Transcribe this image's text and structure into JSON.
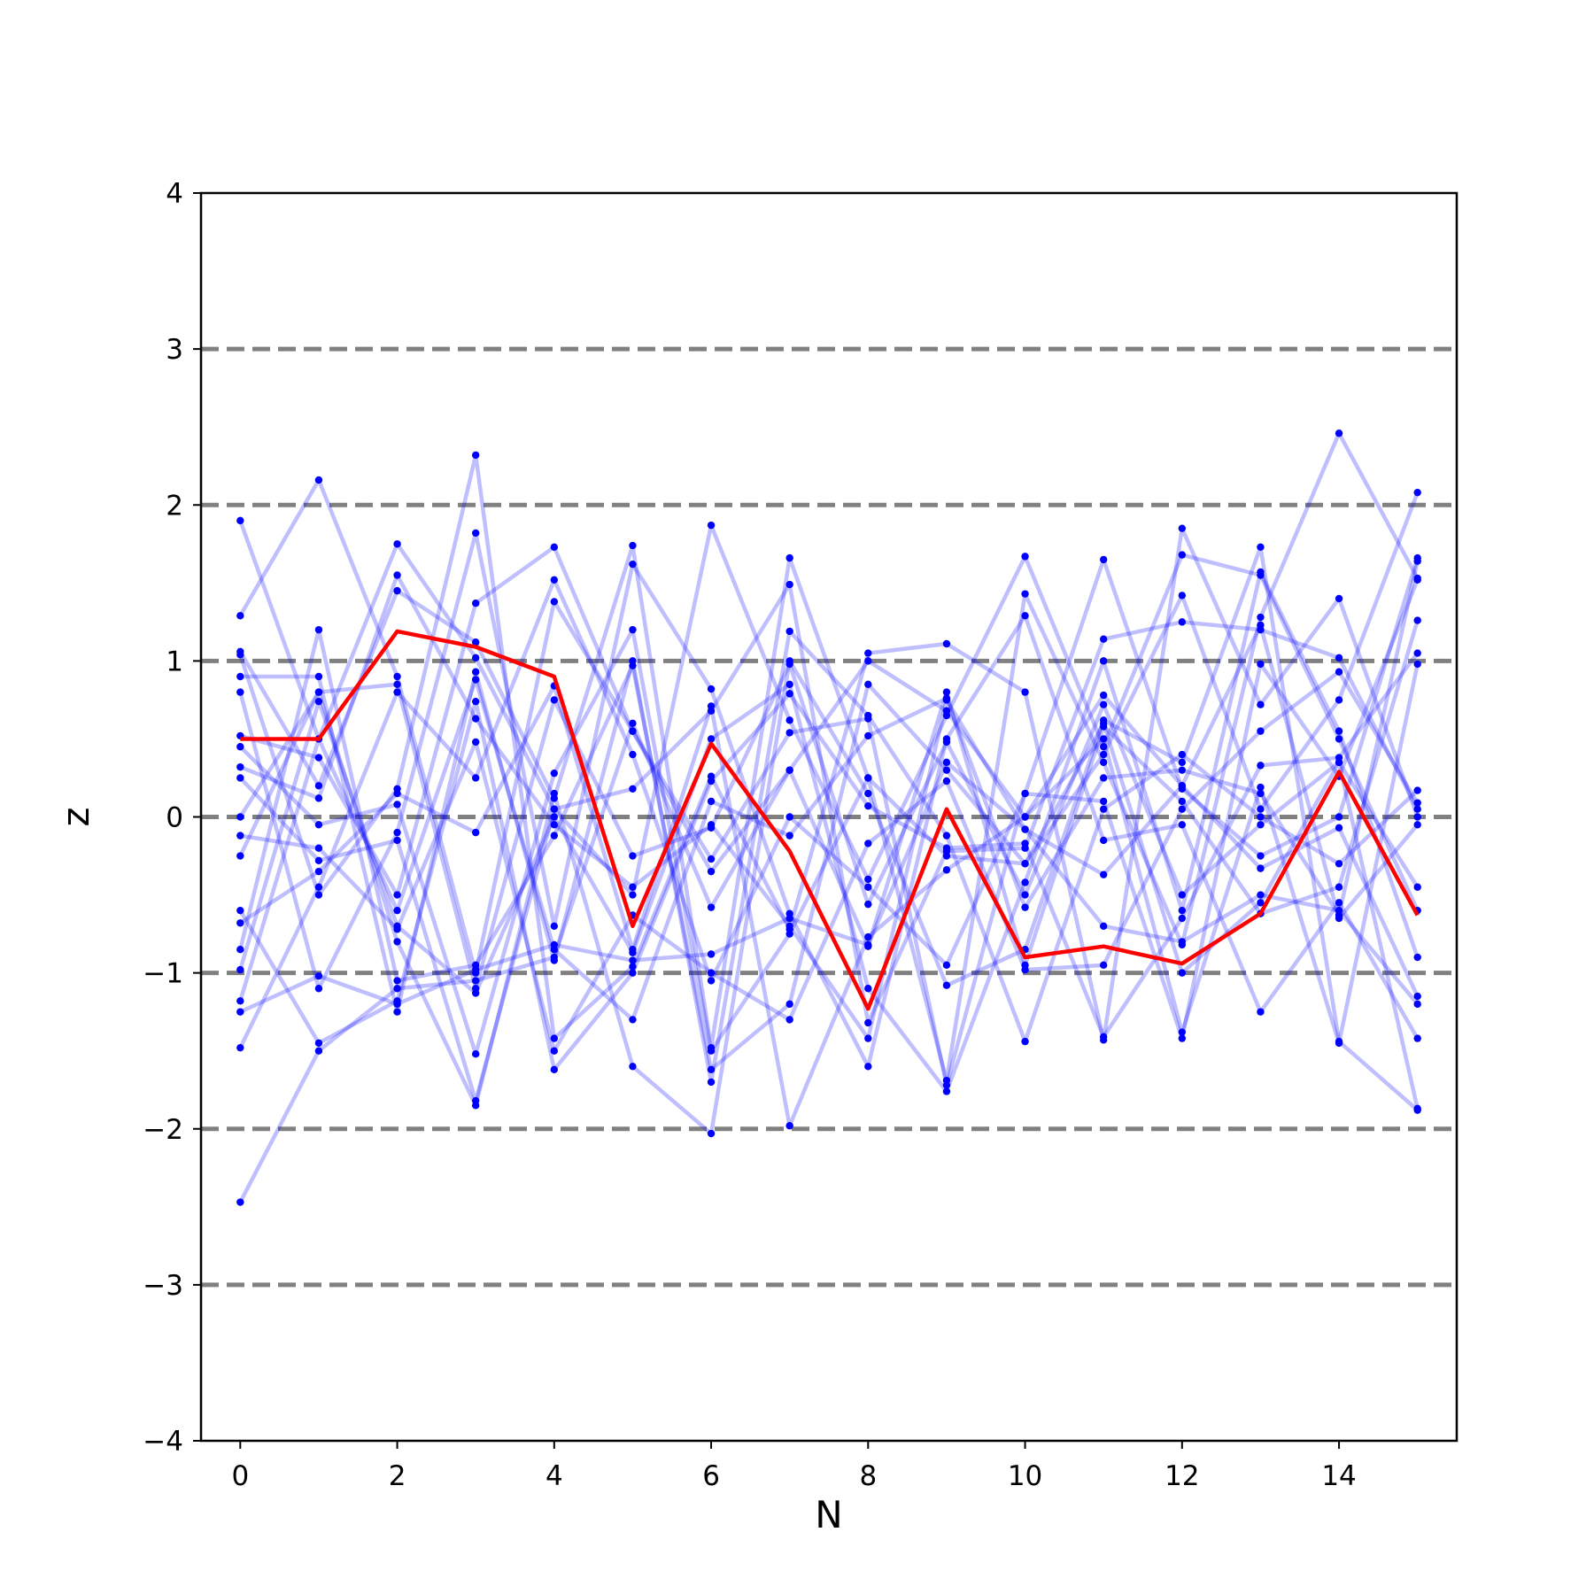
{
  "chart_data": {
    "type": "line",
    "xlabel": "N",
    "ylabel": "z",
    "xlim": [
      -0.5,
      15.5
    ],
    "ylim": [
      -4,
      4
    ],
    "xticks": [
      0,
      2,
      4,
      6,
      8,
      10,
      12,
      14
    ],
    "yticks": [
      -4,
      -3,
      -2,
      -1,
      0,
      1,
      2,
      3,
      4
    ],
    "ytick_labels": [
      "−4",
      "−3",
      "−2",
      "−1",
      "0",
      "1",
      "2",
      "3",
      "4"
    ],
    "reference_lines": [
      -3,
      -2,
      -1,
      0,
      1,
      2,
      3
    ],
    "grid": false,
    "colors": {
      "trajectories": "#0000ff",
      "highlight": "#ff0000",
      "reference": "#808080",
      "axes": "#000000"
    },
    "x": [
      0,
      1,
      2,
      3,
      4,
      5,
      6,
      7,
      8,
      9,
      10,
      11,
      12,
      13,
      14,
      15
    ],
    "highlight_series": {
      "values": [
        0.5,
        0.5,
        1.19,
        1.09,
        0.9,
        -0.7,
        0.47,
        -0.22,
        -1.23,
        0.05,
        -0.9,
        -0.83,
        -0.94,
        -0.62,
        0.29,
        -0.63
      ]
    },
    "series": [
      {
        "values": [
          1.9,
          0.5,
          1.75,
          1.02,
          0.05,
          -0.5,
          1.87,
          0.62,
          -0.4,
          0.65,
          1.67,
          0.45,
          1.68,
          1.55,
          0.5,
          -0.6
        ]
      },
      {
        "values": [
          1.29,
          2.16,
          0.9,
          -1.0,
          1.38,
          0.55,
          -0.35,
          0.3,
          -0.83,
          0.8,
          -0.95,
          0.58,
          0.1,
          -0.62,
          -0.45,
          1.26
        ]
      },
      {
        "values": [
          1.06,
          0.2,
          1.45,
          1.12,
          0.12,
          1.74,
          -1.48,
          1.66,
          0.25,
          -1.69,
          1.43,
          0.35,
          -0.82,
          1.28,
          2.46,
          1.53
        ]
      },
      {
        "values": [
          1.04,
          -0.5,
          0.18,
          2.32,
          -1.42,
          -0.96,
          0.26,
          -0.72,
          1.05,
          1.11,
          0.8,
          -1.43,
          1.85,
          0.72,
          1.4,
          0.0
        ]
      },
      {
        "values": [
          0.9,
          0.9,
          -1.25,
          0.93,
          -0.92,
          1.0,
          -1.7,
          1.19,
          0.65,
          -0.12,
          -1.44,
          0.05,
          0.4,
          0.0,
          -0.3,
          0.17
        ]
      },
      {
        "values": [
          0.8,
          -1.1,
          -0.1,
          1.82,
          -0.7,
          1.62,
          0.82,
          -0.62,
          -1.6,
          0.5,
          1.29,
          -0.15,
          -0.05,
          -1.25,
          -0.55,
          -1.42
        ]
      },
      {
        "values": [
          0.52,
          0.38,
          -0.5,
          1.37,
          1.73,
          0.55,
          -0.27,
          0.54,
          0.63,
          -1.72,
          0.15,
          1.65,
          0.18,
          -0.25,
          0.0,
          1.66
        ]
      },
      {
        "values": [
          0.45,
          -0.05,
          0.08,
          -1.52,
          0.28,
          1.2,
          -1.5,
          -0.75,
          0.25,
          -0.25,
          -0.3,
          0.4,
          1.42,
          0.05,
          0.75,
          2.08
        ]
      },
      {
        "values": [
          0.32,
          0.12,
          1.55,
          0.63,
          -0.05,
          -0.45,
          -0.05,
          -0.7,
          -1.42,
          0.75,
          -0.08,
          -0.7,
          -0.8,
          -0.5,
          -0.6,
          -1.2
        ]
      },
      {
        "values": [
          0.25,
          -0.28,
          -0.15,
          -1.82,
          0.05,
          0.18,
          0.68,
          1.49,
          -1.32,
          -0.22,
          -0.2,
          1.14,
          1.25,
          1.2,
          1.02,
          0.05
        ]
      },
      {
        "values": [
          0.0,
          0.8,
          0.85,
          -1.1,
          0.75,
          -0.25,
          -0.07,
          0.98,
          -0.56,
          0.48,
          -0.5,
          0.72,
          -0.5,
          -0.05,
          0.35,
          -0.45
        ]
      },
      {
        "values": [
          -0.12,
          -0.2,
          -0.72,
          0.48,
          -1.5,
          -0.63,
          -1.0,
          -1.3,
          -0.17,
          0.23,
          -0.98,
          -0.95,
          0.05,
          0.55,
          0.93,
          0.09
        ]
      },
      {
        "values": [
          -0.25,
          0.8,
          -0.8,
          -1.85,
          0.15,
          -1.6,
          -2.03,
          1.0,
          0.15,
          -1.08,
          -0.85,
          0.62,
          0.35,
          1.73,
          -1.44,
          -1.88
        ]
      },
      {
        "values": [
          -0.6,
          -1.45,
          -1.18,
          0.74,
          -1.62,
          -1.0,
          0.23,
          0.79,
          0.07,
          -0.2,
          -0.17,
          -1.41,
          -0.65,
          0.33,
          0.38,
          1.05
        ]
      },
      {
        "values": [
          -0.68,
          -0.35,
          0.15,
          -0.1,
          0.84,
          -0.85,
          0.71,
          -1.98,
          -0.77,
          -0.34,
          0.0,
          0.5,
          -1.38,
          0.19,
          -1.45,
          0.98
        ]
      },
      {
        "values": [
          -0.85,
          1.2,
          -1.05,
          -0.95,
          -0.12,
          0.97,
          -1.62,
          -1.2,
          0.85,
          0.3,
          -0.3,
          0.6,
          -1.0,
          -0.55,
          0.35,
          -1.87
        ]
      },
      {
        "values": [
          -0.98,
          0.74,
          -0.7,
          -1.13,
          0.0,
          -0.87,
          0.5,
          0.85,
          -1.1,
          -1.76,
          -0.42,
          1.0,
          -0.6,
          1.57,
          0.55,
          -0.9
        ]
      },
      {
        "values": [
          -1.18,
          0.5,
          -0.6,
          0.88,
          -0.85,
          -1.3,
          0.1,
          -0.12,
          0.52,
          0.76,
          -0.58,
          0.25,
          0.3,
          0.15,
          -0.63,
          1.64
        ]
      },
      {
        "values": [
          -1.25,
          -1.02,
          -1.2,
          -0.98,
          -0.82,
          -0.92,
          -0.88,
          -0.65,
          -0.82,
          0.35,
          -0.08,
          -0.37,
          0.2,
          1.23,
          -0.65,
          -0.05
        ]
      },
      {
        "values": [
          -1.48,
          -0.45,
          0.8,
          0.25,
          1.52,
          0.4,
          -1.05,
          0.0,
          -0.45,
          -0.95,
          0.15,
          0.1,
          -1.42,
          0.98,
          0.26,
          1.52
        ]
      },
      {
        "values": [
          -2.47,
          -1.5,
          -1.1,
          -1.05,
          -0.9,
          0.6,
          -0.58,
          0.3,
          1.0,
          0.68,
          0.0,
          0.78,
          0.2,
          -0.33,
          -0.07,
          -1.15
        ]
      }
    ]
  }
}
